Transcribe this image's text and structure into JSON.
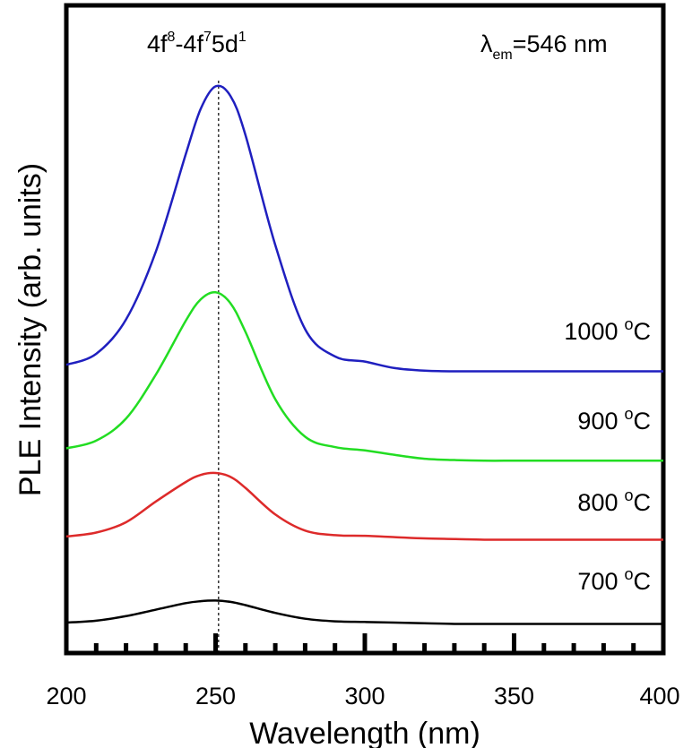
{
  "chart_data": {
    "type": "line",
    "title": "",
    "xlabel": "Wavelength (nm)",
    "ylabel": "PLE Intensity (arb. units)",
    "xlim": [
      200,
      400
    ],
    "ylim": [
      0,
      1
    ],
    "x_ticks": [
      "200",
      "250",
      "300",
      "350",
      "400"
    ],
    "y_ticks": [],
    "grid": false,
    "reference_line": {
      "x": 251,
      "style": "dotted",
      "label_base": "4f",
      "label_sup1": "8",
      "label_mid": "-4f",
      "label_sup2": "7",
      "label_mid2": "5d",
      "label_sup3": "1"
    },
    "annotation": {
      "symbol": "λ",
      "subscript": "em",
      "text": "=546 nm"
    },
    "x": [
      200,
      210,
      220,
      230,
      240,
      245,
      250,
      255,
      260,
      270,
      280,
      290,
      300,
      310,
      320,
      330,
      340,
      350,
      360,
      380,
      400
    ],
    "series": [
      {
        "name": "700 °C",
        "label": "700",
        "unit": "°C",
        "color": "#000000",
        "values": [
          0.047,
          0.05,
          0.057,
          0.067,
          0.077,
          0.08,
          0.081,
          0.079,
          0.074,
          0.062,
          0.053,
          0.049,
          0.048,
          0.047,
          0.046,
          0.045,
          0.045,
          0.045,
          0.045,
          0.045,
          0.045
        ]
      },
      {
        "name": "800 °C",
        "label": "800",
        "unit": "°C",
        "color": "#dd2a2a",
        "values": [
          0.18,
          0.186,
          0.202,
          0.234,
          0.264,
          0.275,
          0.278,
          0.272,
          0.255,
          0.214,
          0.189,
          0.182,
          0.181,
          0.179,
          0.177,
          0.176,
          0.175,
          0.175,
          0.175,
          0.175,
          0.175
        ]
      },
      {
        "name": "900 °C",
        "label": "900",
        "unit": "°C",
        "color": "#22dd22",
        "values": [
          0.316,
          0.328,
          0.362,
          0.43,
          0.513,
          0.546,
          0.557,
          0.54,
          0.496,
          0.392,
          0.334,
          0.318,
          0.313,
          0.306,
          0.3,
          0.298,
          0.297,
          0.297,
          0.297,
          0.297,
          0.297
        ]
      },
      {
        "name": "1000 °C",
        "label": "1000",
        "unit": "°C",
        "color": "#1f1fbf",
        "values": [
          0.445,
          0.462,
          0.515,
          0.62,
          0.77,
          0.84,
          0.875,
          0.86,
          0.8,
          0.63,
          0.5,
          0.458,
          0.45,
          0.44,
          0.436,
          0.435,
          0.435,
          0.435,
          0.435,
          0.435,
          0.435
        ]
      }
    ]
  }
}
